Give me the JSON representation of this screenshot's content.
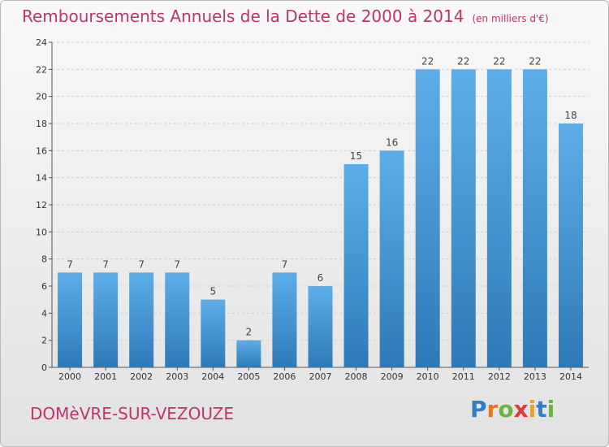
{
  "title": {
    "main": "Remboursements Annuels de la Dette de 2000 à 2014",
    "unit": "(en milliers d'€)"
  },
  "commune": "DOMèVRE-SUR-VEZOUZE",
  "logo": {
    "text": "Proxiti",
    "letters": [
      {
        "ch": "P",
        "color": "#2f7fc8"
      },
      {
        "ch": "r",
        "color": "#e8761e"
      },
      {
        "ch": "o",
        "color": "#6cb33f"
      },
      {
        "ch": "x",
        "color": "#e03a3a"
      },
      {
        "ch": "i",
        "color": "#e8a41e"
      },
      {
        "ch": "t",
        "color": "#2f7fc8"
      },
      {
        "ch": "i",
        "color": "#6cb33f"
      }
    ]
  },
  "colors": {
    "bar_light": "#5daee8",
    "bar_dark": "#2e7ab8",
    "title": "#c0336c",
    "grid": "#d0d0d0"
  },
  "chart_data": {
    "type": "bar",
    "categories": [
      "2000",
      "2001",
      "2002",
      "2003",
      "2004",
      "2005",
      "2006",
      "2007",
      "2008",
      "2009",
      "2010",
      "2011",
      "2012",
      "2013",
      "2014"
    ],
    "values": [
      7,
      7,
      7,
      7,
      5,
      2,
      7,
      6,
      15,
      16,
      22,
      22,
      22,
      22,
      18
    ],
    "ylim": [
      0,
      24
    ],
    "yticks": [
      0,
      2,
      4,
      6,
      8,
      10,
      12,
      14,
      16,
      18,
      20,
      22,
      24
    ],
    "grid": true,
    "xlabel": "",
    "ylabel": ""
  }
}
